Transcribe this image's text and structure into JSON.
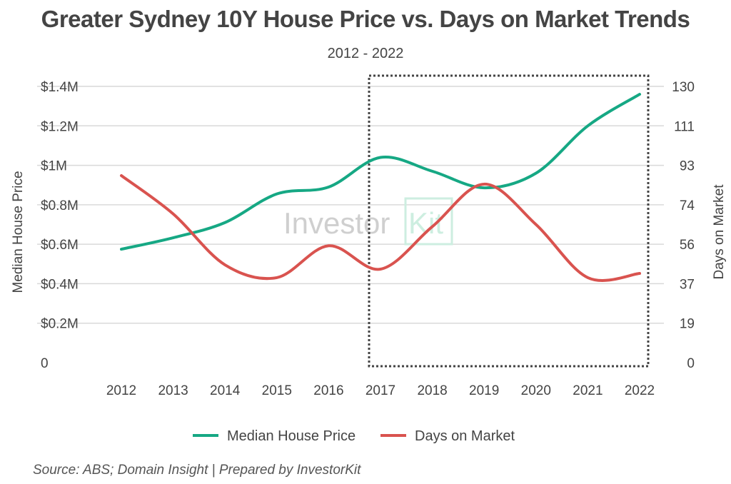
{
  "chart_data": {
    "type": "line",
    "title": "Greater Sydney 10Y House Price vs. Days on Market Trends",
    "subtitle": "2012 - 2022",
    "source": "Source: ABS; Domain Insight | Prepared by InvestorKit",
    "watermark": "InvestorKit",
    "categories": [
      "2012",
      "2013",
      "2014",
      "2015",
      "2016",
      "2017",
      "2018",
      "2019",
      "2020",
      "2021",
      "2022"
    ],
    "y_left": {
      "label": "Median House Price",
      "ylim": [
        0,
        1400000
      ],
      "ticks": [
        0,
        200000,
        400000,
        600000,
        800000,
        1000000,
        1200000,
        1400000
      ],
      "tick_labels": [
        "0",
        "$0.2M",
        "$0.4M",
        "$0.6M",
        "$0.8M",
        "$1M",
        "$1.2M",
        "$1.4M"
      ]
    },
    "y_right": {
      "label": "Days on Market",
      "ylim": [
        0,
        130
      ],
      "ticks": [
        0,
        18.57,
        37.14,
        55.71,
        74.29,
        92.86,
        111.43,
        130
      ],
      "tick_labels": [
        "0",
        "19",
        "37",
        "56",
        "74",
        "93",
        "111",
        "130"
      ]
    },
    "grid": true,
    "legend_position": "bottom",
    "highlight_range": [
      "2017",
      "2022"
    ],
    "series": [
      {
        "name": "Median House Price",
        "axis": "left",
        "color": "#16a884",
        "values": [
          575000,
          633000,
          710000,
          855000,
          890000,
          1040000,
          970000,
          886000,
          960000,
          1200000,
          1360000
        ]
      },
      {
        "name": "Days on Market",
        "axis": "right",
        "color": "#d9534f",
        "values": [
          88,
          70,
          46,
          40,
          55,
          44,
          64,
          84,
          65,
          40,
          42
        ]
      }
    ]
  }
}
